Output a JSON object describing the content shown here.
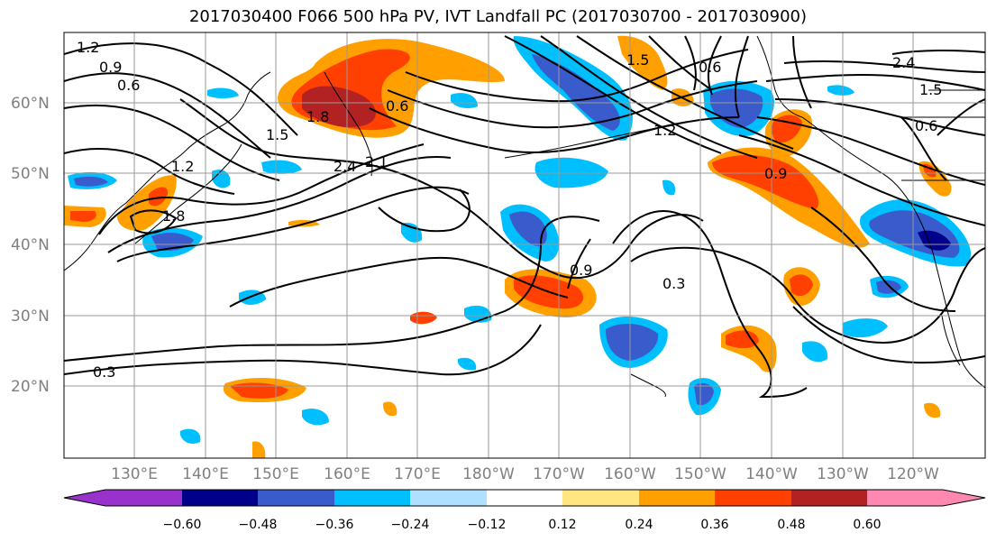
{
  "title": "2017030400 F066 500 hPa PV, IVT Landfall PC (2017030700 - 2017030900)",
  "lat_labels": [
    "60°N",
    "50°N",
    "40°N",
    "30°N",
    "20°N"
  ],
  "lon_labels": [
    "130°E",
    "140°E",
    "150°E",
    "160°E",
    "170°E",
    "180°W",
    "170°W",
    "160°W",
    "150°W",
    "140°W",
    "130°W",
    "120°W"
  ],
  "contour_labels": [
    "1.2",
    "0.9",
    "0.6",
    "1.5",
    "1.8",
    "2.1",
    "2.4",
    "0.3",
    "1.5",
    "1.2",
    "0.9",
    "0.6",
    "0.3",
    "0.9",
    "0.6",
    "1.5",
    "1.2",
    "1.8",
    "2.4",
    "0.6"
  ],
  "colorbar": {
    "ticks": [
      "−0.60",
      "−0.48",
      "−0.36",
      "−0.24",
      "−0.12",
      "0.12",
      "0.24",
      "0.36",
      "0.48",
      "0.60"
    ],
    "colors": [
      "#9932cc",
      "#00008b",
      "#3a5bcc",
      "#00bfff",
      "#b0e0ff",
      "#ffffff",
      "#ffe680",
      "#ffa000",
      "#ff4000",
      "#b22222",
      "#ff88b0"
    ]
  }
}
